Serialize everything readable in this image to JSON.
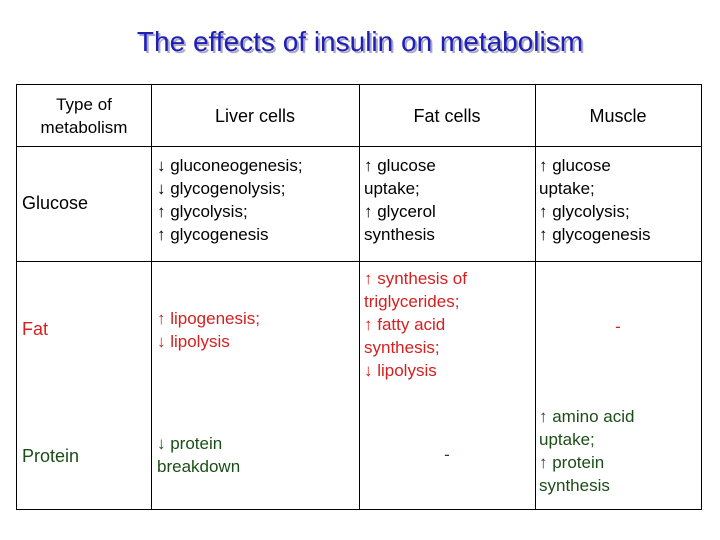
{
  "title": "The effects of insulin on metabolism",
  "table": {
    "headers": [
      "Type of metabolism",
      "Liver cells",
      "Fat cells",
      "Muscle"
    ],
    "rows": [
      {
        "type": "Glucose",
        "liver": "↓ gluconeogenesis;\n↓ glycogenolysis;\n↑ glycolysis;\n↑ glycogenesis",
        "fat": "↑ glucose\nuptake;\n↑ glycerol\nsynthesis",
        "muscle": "↑ glucose\nuptake;\n↑ glycolysis;\n↑ glycogenesis"
      },
      {
        "type": "Fat",
        "liver": "↑ lipogenesis;\n↓ lipolysis",
        "fat": "↑ synthesis of\ntriglycerides;\n↑ fatty acid\nsynthesis;\n↓ lipolysis",
        "muscle": "-"
      },
      {
        "type": "Protein",
        "liver": "↓ protein\nbreakdown",
        "fat": "-",
        "muscle": "↑ amino acid\nuptake;\n↑ protein\nsynthesis"
      }
    ]
  },
  "colors": {
    "title": "#1f1fb8",
    "fat_row": "#d62020",
    "protein_row": "#1a4e16"
  }
}
